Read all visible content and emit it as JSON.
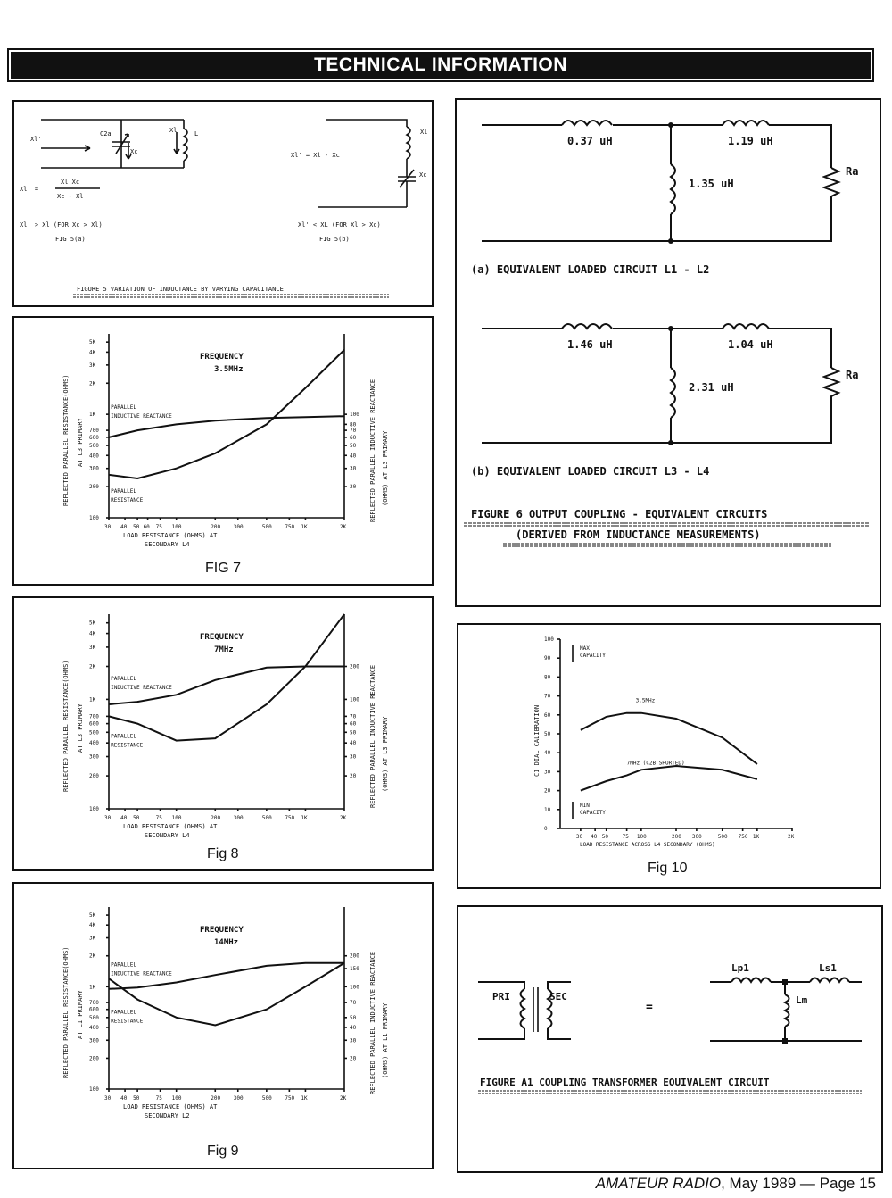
{
  "header": {
    "title": "TECHNICAL INFORMATION"
  },
  "footer": {
    "magazine": "AMATEUR RADIO",
    "date": ", May 1989 — Page 15"
  },
  "fig5": {
    "a_x1p": "Xl'",
    "a_c2a": "C2a",
    "a_xc": "Xc",
    "a_xl": "Xl",
    "a_L": "L",
    "formula_left": "Xl' =",
    "formula_num": "Xl.Xc",
    "formula_den": "Xc - Xl",
    "cond_a": "Xl' > Xl (FOR Xc > Xl)",
    "label_a": "FIG 5(a)",
    "b_eq": "Xl' = Xl - Xc",
    "b_xl": "Xl",
    "b_xc": "Xc",
    "cond_b": "Xl' < XL (FOR Xl > Xc)",
    "label_b": "FIG 5(b)",
    "caption": "FIGURE 5  VARIATION OF INDUCTANCE BY VARYING CAPACITANCE"
  },
  "fig6": {
    "a_l1": "0.37 uH",
    "a_l2": "1.19 uH",
    "a_l3": "1.35 uH",
    "a_r": "Ra",
    "a_caption": "(a) EQUIVALENT LOADED CIRCUIT  L1 - L2",
    "b_l1": "1.46 uH",
    "b_l2": "1.04 uH",
    "b_l3": "2.31 uH",
    "b_r": "Ra",
    "b_caption": "(b) EQUIVALENT LOADED CIRCUIT  L3 - L4",
    "caption1": "FIGURE 6  OUTPUT COUPLING - EQUIVALENT CIRCUITS",
    "caption2": "(DERIVED FROM INDUCTANCE MEASUREMENTS)"
  },
  "figA1": {
    "pri": "PRI",
    "sec": "SEC",
    "eq": "=",
    "lp": "Lp1",
    "ls": "Ls1",
    "lm": "Lm",
    "caption": "FIGURE A1   COUPLING TRANSFORMER EQUIVALENT CIRCUIT"
  },
  "chart_data": [
    {
      "type": "line",
      "caption": "FIG 7",
      "title_line1": "FREQUENCY",
      "title_line2": "3.5MHz",
      "xlabel_line1": "LOAD RESISTANCE (OHMS) AT",
      "xlabel_line2": "SECONDARY L4",
      "ylabel_left_line1": "REFLECTED PARALLEL RESISTANCE(OHMS)",
      "ylabel_left_line2": "AT L3 PRIMARY",
      "ylabel_right_line1": "REFLECTED PARALLEL INDUCTIVE REACTANCE",
      "ylabel_right_line2": "(OHMS) AT L3 PRIMARY",
      "x_ticks": [
        "30",
        "40",
        "50",
        "60",
        "75",
        "100",
        "200",
        "300",
        "500",
        "750",
        "1K",
        "2K"
      ],
      "yl_ticks": [
        "100",
        "200",
        "300",
        "400",
        "500",
        "600",
        "700",
        "1K",
        "2K",
        "3K",
        "4K",
        "5K"
      ],
      "yr_ticks": [
        "20",
        "30",
        "40",
        "50",
        "60",
        "70",
        "80",
        "100"
      ],
      "series": [
        {
          "name_line1": "PARALLEL",
          "name_line2": "INDUCTIVE REACTANCE",
          "x": [
            30,
            50,
            100,
            200,
            500,
            1000,
            2000
          ],
          "y": [
            600,
            700,
            800,
            870,
            920,
            940,
            960
          ]
        },
        {
          "name_line1": "PARALLEL",
          "name_line2": "RESISTANCE",
          "x": [
            30,
            50,
            100,
            200,
            500,
            1000,
            2000
          ],
          "y": [
            260,
            240,
            300,
            420,
            800,
            1800,
            4200
          ]
        }
      ]
    },
    {
      "type": "line",
      "caption": "Fig 8",
      "title_line1": "FREQUENCY",
      "title_line2": "7MHz",
      "xlabel_line1": "LOAD RESISTANCE (OHMS) AT",
      "xlabel_line2": "SECONDARY L4",
      "ylabel_left_line1": "REFLECTED PARALLEL RESISTANCE(OHMS)",
      "ylabel_left_line2": "AT L3 PRIMARY",
      "ylabel_right_line1": "REFLECTED PARALLEL INDUCTIVE REACTANCE",
      "ylabel_right_line2": "(OHMS) AT L3 PRIMARY",
      "x_ticks": [
        "30",
        "40",
        "50",
        "75",
        "100",
        "200",
        "300",
        "500",
        "750",
        "1K",
        "2K"
      ],
      "yl_ticks": [
        "100",
        "200",
        "300",
        "400",
        "500",
        "600",
        "700",
        "1K",
        "2K",
        "3K",
        "4K",
        "5K"
      ],
      "yr_ticks": [
        "20",
        "30",
        "40",
        "50",
        "60",
        "70",
        "100",
        "200"
      ],
      "series": [
        {
          "name_line1": "PARALLEL",
          "name_line2": "INDUCTIVE REACTANCE",
          "x": [
            30,
            50,
            100,
            200,
            500,
            1000,
            2000
          ],
          "y": [
            900,
            950,
            1100,
            1500,
            1950,
            2000,
            2000
          ]
        },
        {
          "name_line1": "PARALLEL",
          "name_line2": "RESISTANCE",
          "x": [
            30,
            50,
            100,
            200,
            500,
            1000,
            2000
          ],
          "y": [
            700,
            600,
            420,
            440,
            900,
            2000,
            6000
          ]
        }
      ]
    },
    {
      "type": "line",
      "caption": "Fig 9",
      "title_line1": "FREQUENCY",
      "title_line2": "14MHz",
      "xlabel_line1": "LOAD RESISTANCE (OHMS) AT",
      "xlabel_line2": "SECONDARY L2",
      "ylabel_left_line1": "REFLECTED PARALLEL RESISTANCE(OHMS)",
      "ylabel_left_line2": "AT L1 PRIMARY",
      "ylabel_right_line1": "REFLECTED PARALLEL INDUCTIVE REACTANCE",
      "ylabel_right_line2": "(OHMS) AT L1 PRIMARY",
      "x_ticks": [
        "30",
        "40",
        "50",
        "75",
        "100",
        "200",
        "300",
        "500",
        "750",
        "1K",
        "2K"
      ],
      "yl_ticks": [
        "100",
        "200",
        "300",
        "400",
        "500",
        "600",
        "700",
        "1K",
        "2K",
        "3K",
        "4K",
        "5K"
      ],
      "yr_ticks": [
        "20",
        "30",
        "40",
        "50",
        "70",
        "100",
        "150",
        "200"
      ],
      "series": [
        {
          "name_line1": "PARALLEL",
          "name_line2": "INDUCTIVE REACTANCE",
          "x": [
            30,
            50,
            100,
            200,
            500,
            1000,
            2000
          ],
          "y": [
            950,
            980,
            1100,
            1300,
            1600,
            1700,
            1700
          ]
        },
        {
          "name_line1": "PARALLEL",
          "name_line2": "RESISTANCE",
          "x": [
            30,
            50,
            100,
            200,
            500,
            1000,
            2000
          ],
          "y": [
            1200,
            750,
            500,
            420,
            600,
            1000,
            1700
          ]
        }
      ]
    },
    {
      "type": "line",
      "caption": "Fig 10",
      "xlabel": "LOAD RESISTANCE ACROSS L4 SECONDARY (OHMS)",
      "ylabel": "C1 DIAL CALIBRATION",
      "top_note_line1": "MAX",
      "top_note_line2": "CAPACITY",
      "bottom_note_line1": "MIN",
      "bottom_note_line2": "CAPACITY",
      "x_ticks": [
        "30",
        "40",
        "50",
        "75",
        "100",
        "200",
        "300",
        "500",
        "750",
        "1K",
        "2K"
      ],
      "y_ticks": [
        "0",
        "10",
        "20",
        "30",
        "40",
        "50",
        "60",
        "70",
        "80",
        "90",
        "100"
      ],
      "ylim": [
        0,
        100
      ],
      "series": [
        {
          "name": "3.5MHz",
          "x": [
            30,
            50,
            75,
            100,
            200,
            500,
            1000
          ],
          "y": [
            52,
            59,
            61,
            61,
            58,
            48,
            34
          ]
        },
        {
          "name": "7MHz (C2B SHORTED)",
          "x": [
            30,
            50,
            75,
            100,
            200,
            500,
            1000
          ],
          "y": [
            20,
            25,
            28,
            31,
            33,
            31,
            26
          ]
        }
      ]
    }
  ]
}
